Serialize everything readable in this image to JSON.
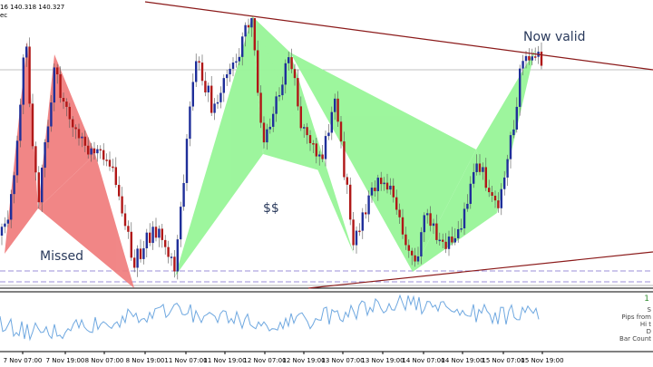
{
  "header": {
    "line1": "16 140.318 140.327",
    "line2": "ec"
  },
  "annotations": {
    "missed": "Missed",
    "dollars": "$$",
    "now_valid": "Now valid"
  },
  "indicator_panel": {
    "value_label": "1",
    "info_lines": [
      "S",
      "Pips from",
      "Hi t",
      "D",
      "Bar Count"
    ]
  },
  "x_axis_labels": [
    "7 Nov 07:00",
    "7 Nov 19:00",
    "8 Nov 07:00",
    "8 Nov 19:00",
    "11 Nov 07:00",
    "11 Nov 19:00",
    "12 Nov 07:00",
    "12 Nov 19:00",
    "13 Nov 07:00",
    "13 Nov 19:00",
    "14 Nov 07:00",
    "14 Nov 19:00",
    "15 Nov 07:00",
    "15 Nov 19:00"
  ],
  "colors": {
    "bull_candle": "#1f2f9a",
    "bear_candle": "#b01818",
    "missed_pattern": "#f07a7a",
    "valid_pattern": "#98f598",
    "trendline": "#8b1a1a",
    "dashed_level": "#9b8fd8",
    "oscillator": "#6fa8e0"
  },
  "chart_data": {
    "type": "candlestick",
    "patterns": [
      {
        "name": "Missed",
        "style": "bearish-red"
      },
      {
        "name": "$$",
        "style": "bullish-green"
      },
      {
        "name": "Now valid",
        "style": "bullish-green"
      }
    ],
    "legend_placement": "none",
    "grid": false
  }
}
